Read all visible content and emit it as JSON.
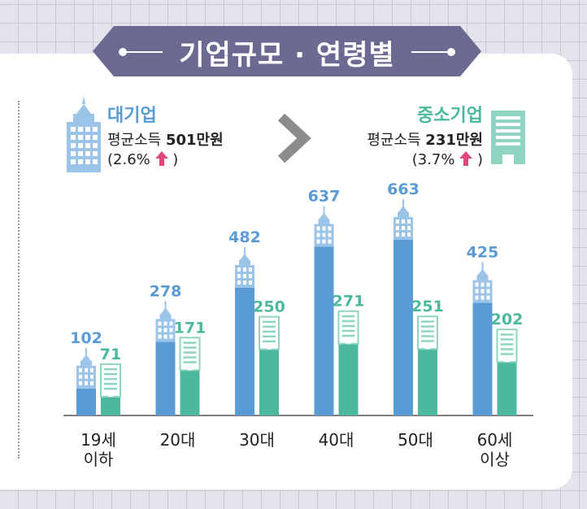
{
  "title": "기업규모 · 연령별",
  "legend": {
    "large": {
      "name": "대기업",
      "income_label": "평균소득",
      "income_value": "501만원",
      "pct_open": "(2.6%",
      "pct_close": ")"
    },
    "small": {
      "name": "중소기업",
      "income_label": "평균소득",
      "income_value": "231만원",
      "pct_open": "(3.7%",
      "pct_close": ")"
    }
  },
  "colors": {
    "large": "#5b9bd5",
    "small": "#4cb89e",
    "banner": "#6c6a93",
    "arrow": "#e0477c"
  },
  "chart_data": {
    "type": "bar",
    "title": "기업규모 · 연령별",
    "categories": [
      [
        "19세",
        "이하"
      ],
      [
        "20대"
      ],
      [
        "30대"
      ],
      [
        "40대"
      ],
      [
        "50대"
      ],
      [
        "60세",
        "이상"
      ]
    ],
    "series": [
      {
        "name": "대기업",
        "values": [
          102,
          278,
          482,
          637,
          663,
          425
        ]
      },
      {
        "name": "중소기업",
        "values": [
          71,
          171,
          250,
          271,
          251,
          202
        ]
      }
    ],
    "ylim": [
      0,
      663
    ],
    "unit": "만원"
  }
}
